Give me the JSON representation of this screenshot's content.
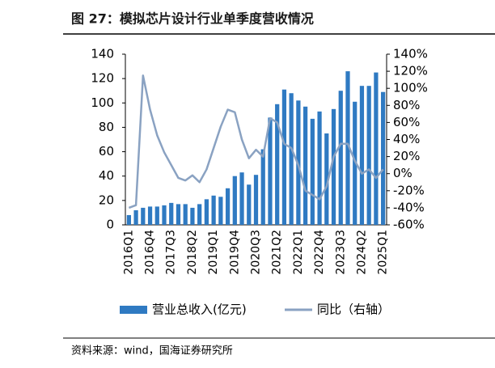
{
  "chart_data": {
    "type": "bar_line",
    "title": "图 27：模拟芯片设计行业单季度营收情况",
    "source": "资料来源：wind，国海证券研究所",
    "categories": [
      "2016Q1",
      null,
      null,
      "2016Q4",
      null,
      null,
      "2017Q3",
      null,
      null,
      "2018Q2",
      null,
      null,
      "2019Q1",
      null,
      null,
      "2019Q4",
      null,
      null,
      "2020Q3",
      null,
      null,
      "2021Q2",
      null,
      null,
      "2022Q1",
      null,
      null,
      "2022Q4",
      null,
      null,
      "2023Q3",
      null,
      null,
      "2024Q2",
      null,
      null,
      "2025Q1"
    ],
    "series": [
      {
        "name": "营业总收入(亿元)",
        "color": "#2f7ac2",
        "kind": "bar",
        "axis": "y",
        "values": [
          8,
          12,
          14,
          15,
          15,
          16,
          18,
          17,
          17,
          14,
          17,
          21,
          24,
          23,
          30,
          40,
          43,
          33,
          41,
          62,
          88,
          99,
          111,
          108,
          102,
          97,
          87,
          93,
          75,
          95,
          110,
          126,
          101,
          114,
          114,
          125,
          109
        ]
      },
      {
        "name": "同比（右轴）",
        "color": "#8aa2c2",
        "kind": "line",
        "axis": "y2",
        "values": [
          -40,
          -37,
          115,
          75,
          45,
          25,
          10,
          -5,
          -8,
          -2,
          -10,
          5,
          30,
          55,
          75,
          72,
          40,
          18,
          28,
          20,
          65,
          60,
          35,
          30,
          10,
          -20,
          -25,
          -30,
          -15,
          20,
          35,
          35,
          15,
          0,
          5,
          -5,
          5
        ]
      }
    ],
    "ylim": [
      0,
      140
    ],
    "yticks": [
      0,
      20,
      40,
      60,
      80,
      100,
      120,
      140
    ],
    "y2lim": [
      -60,
      140
    ],
    "y2ticks": [
      {
        "value": -60,
        "label": "-60%"
      },
      {
        "value": -40,
        "label": "-40%"
      },
      {
        "value": -20,
        "label": "-20%"
      },
      {
        "value": 0,
        "label": "0%"
      },
      {
        "value": 20,
        "label": "20%"
      },
      {
        "value": 40,
        "label": "40%"
      },
      {
        "value": 60,
        "label": "60%"
      },
      {
        "value": 80,
        "label": "80%"
      },
      {
        "value": 100,
        "label": "100%"
      },
      {
        "value": 120,
        "label": "120%"
      },
      {
        "value": 140,
        "label": "140%"
      }
    ],
    "grid": false
  }
}
